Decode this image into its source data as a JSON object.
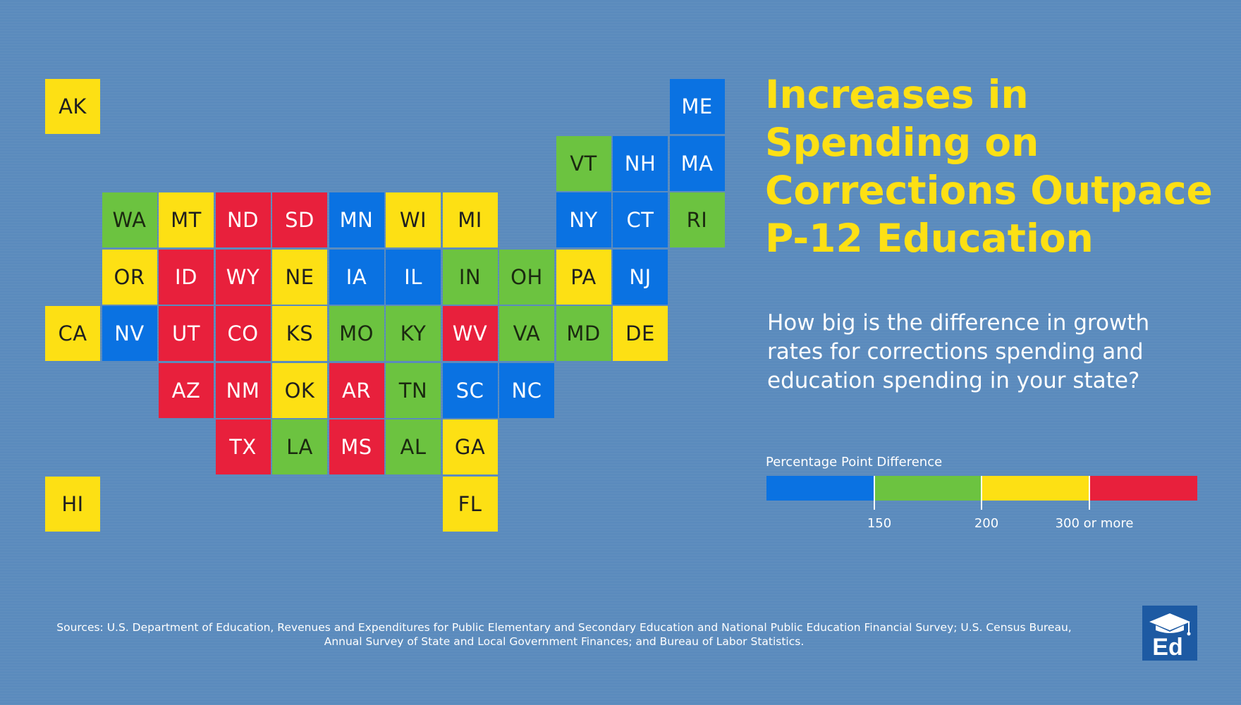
{
  "title": "Increases in Spending on Corrections Outpace P-12 Education",
  "subtitle": "How big is the difference in growth rates for corrections spending and education spending in your state?",
  "colors": {
    "blue": "#0a72e2",
    "green": "#6cc340",
    "yellow": "#fde014",
    "red": "#e8203c",
    "background": "#5b8bbd",
    "logo": "#1d5aa3"
  },
  "legend": {
    "label": "Percentage Point Difference",
    "categories": [
      "blue",
      "green",
      "yellow",
      "red"
    ],
    "breaks": [
      {
        "value": 150,
        "label": "150"
      },
      {
        "value": 200,
        "label": "200"
      },
      {
        "value": 300,
        "label": "300 or more"
      }
    ]
  },
  "states": [
    {
      "abbr": "AK",
      "row": 0,
      "col": 0,
      "category": "yellow"
    },
    {
      "abbr": "ME",
      "row": 0,
      "col": 11,
      "category": "blue"
    },
    {
      "abbr": "VT",
      "row": 1,
      "col": 9,
      "category": "green"
    },
    {
      "abbr": "NH",
      "row": 1,
      "col": 10,
      "category": "blue"
    },
    {
      "abbr": "MA",
      "row": 1,
      "col": 11,
      "category": "blue"
    },
    {
      "abbr": "WA",
      "row": 2,
      "col": 1,
      "category": "green"
    },
    {
      "abbr": "MT",
      "row": 2,
      "col": 2,
      "category": "yellow"
    },
    {
      "abbr": "ND",
      "row": 2,
      "col": 3,
      "category": "red"
    },
    {
      "abbr": "SD",
      "row": 2,
      "col": 4,
      "category": "red"
    },
    {
      "abbr": "MN",
      "row": 2,
      "col": 5,
      "category": "blue"
    },
    {
      "abbr": "WI",
      "row": 2,
      "col": 6,
      "category": "yellow"
    },
    {
      "abbr": "MI",
      "row": 2,
      "col": 7,
      "category": "yellow"
    },
    {
      "abbr": "NY",
      "row": 2,
      "col": 9,
      "category": "blue"
    },
    {
      "abbr": "CT",
      "row": 2,
      "col": 10,
      "category": "blue"
    },
    {
      "abbr": "RI",
      "row": 2,
      "col": 11,
      "category": "green"
    },
    {
      "abbr": "OR",
      "row": 3,
      "col": 1,
      "category": "yellow"
    },
    {
      "abbr": "ID",
      "row": 3,
      "col": 2,
      "category": "red"
    },
    {
      "abbr": "WY",
      "row": 3,
      "col": 3,
      "category": "red"
    },
    {
      "abbr": "NE",
      "row": 3,
      "col": 4,
      "category": "yellow"
    },
    {
      "abbr": "IA",
      "row": 3,
      "col": 5,
      "category": "blue"
    },
    {
      "abbr": "IL",
      "row": 3,
      "col": 6,
      "category": "blue"
    },
    {
      "abbr": "IN",
      "row": 3,
      "col": 7,
      "category": "green"
    },
    {
      "abbr": "OH",
      "row": 3,
      "col": 8,
      "category": "green"
    },
    {
      "abbr": "PA",
      "row": 3,
      "col": 9,
      "category": "yellow"
    },
    {
      "abbr": "NJ",
      "row": 3,
      "col": 10,
      "category": "blue"
    },
    {
      "abbr": "CA",
      "row": 4,
      "col": 0,
      "category": "yellow"
    },
    {
      "abbr": "NV",
      "row": 4,
      "col": 1,
      "category": "blue"
    },
    {
      "abbr": "UT",
      "row": 4,
      "col": 2,
      "category": "red"
    },
    {
      "abbr": "CO",
      "row": 4,
      "col": 3,
      "category": "red"
    },
    {
      "abbr": "KS",
      "row": 4,
      "col": 4,
      "category": "yellow"
    },
    {
      "abbr": "MO",
      "row": 4,
      "col": 5,
      "category": "green"
    },
    {
      "abbr": "KY",
      "row": 4,
      "col": 6,
      "category": "green"
    },
    {
      "abbr": "WV",
      "row": 4,
      "col": 7,
      "category": "red"
    },
    {
      "abbr": "VA",
      "row": 4,
      "col": 8,
      "category": "green"
    },
    {
      "abbr": "MD",
      "row": 4,
      "col": 9,
      "category": "green"
    },
    {
      "abbr": "DE",
      "row": 4,
      "col": 10,
      "category": "yellow"
    },
    {
      "abbr": "AZ",
      "row": 5,
      "col": 2,
      "category": "red"
    },
    {
      "abbr": "NM",
      "row": 5,
      "col": 3,
      "category": "red"
    },
    {
      "abbr": "OK",
      "row": 5,
      "col": 4,
      "category": "yellow"
    },
    {
      "abbr": "AR",
      "row": 5,
      "col": 5,
      "category": "red"
    },
    {
      "abbr": "TN",
      "row": 5,
      "col": 6,
      "category": "green"
    },
    {
      "abbr": "SC",
      "row": 5,
      "col": 7,
      "category": "blue"
    },
    {
      "abbr": "NC",
      "row": 5,
      "col": 8,
      "category": "blue"
    },
    {
      "abbr": "TX",
      "row": 6,
      "col": 3,
      "category": "red"
    },
    {
      "abbr": "LA",
      "row": 6,
      "col": 4,
      "category": "green"
    },
    {
      "abbr": "MS",
      "row": 6,
      "col": 5,
      "category": "red"
    },
    {
      "abbr": "AL",
      "row": 6,
      "col": 6,
      "category": "green"
    },
    {
      "abbr": "GA",
      "row": 6,
      "col": 7,
      "category": "yellow"
    },
    {
      "abbr": "HI",
      "row": 7,
      "col": 0,
      "category": "yellow"
    },
    {
      "abbr": "FL",
      "row": 7,
      "col": 7,
      "category": "yellow"
    }
  ],
  "sources": {
    "line1": "Sources: U.S. Department of Education, Revenues and Expenditures for Public Elementary and Secondary Education and National Public Education Financial Survey; U.S. Census Bureau,",
    "line2": "Annual Survey of State and Local Government Finances; and Bureau of Labor Statistics."
  },
  "logo": {
    "icon": "ed-graduation-cap-logo",
    "text": "Ed"
  }
}
